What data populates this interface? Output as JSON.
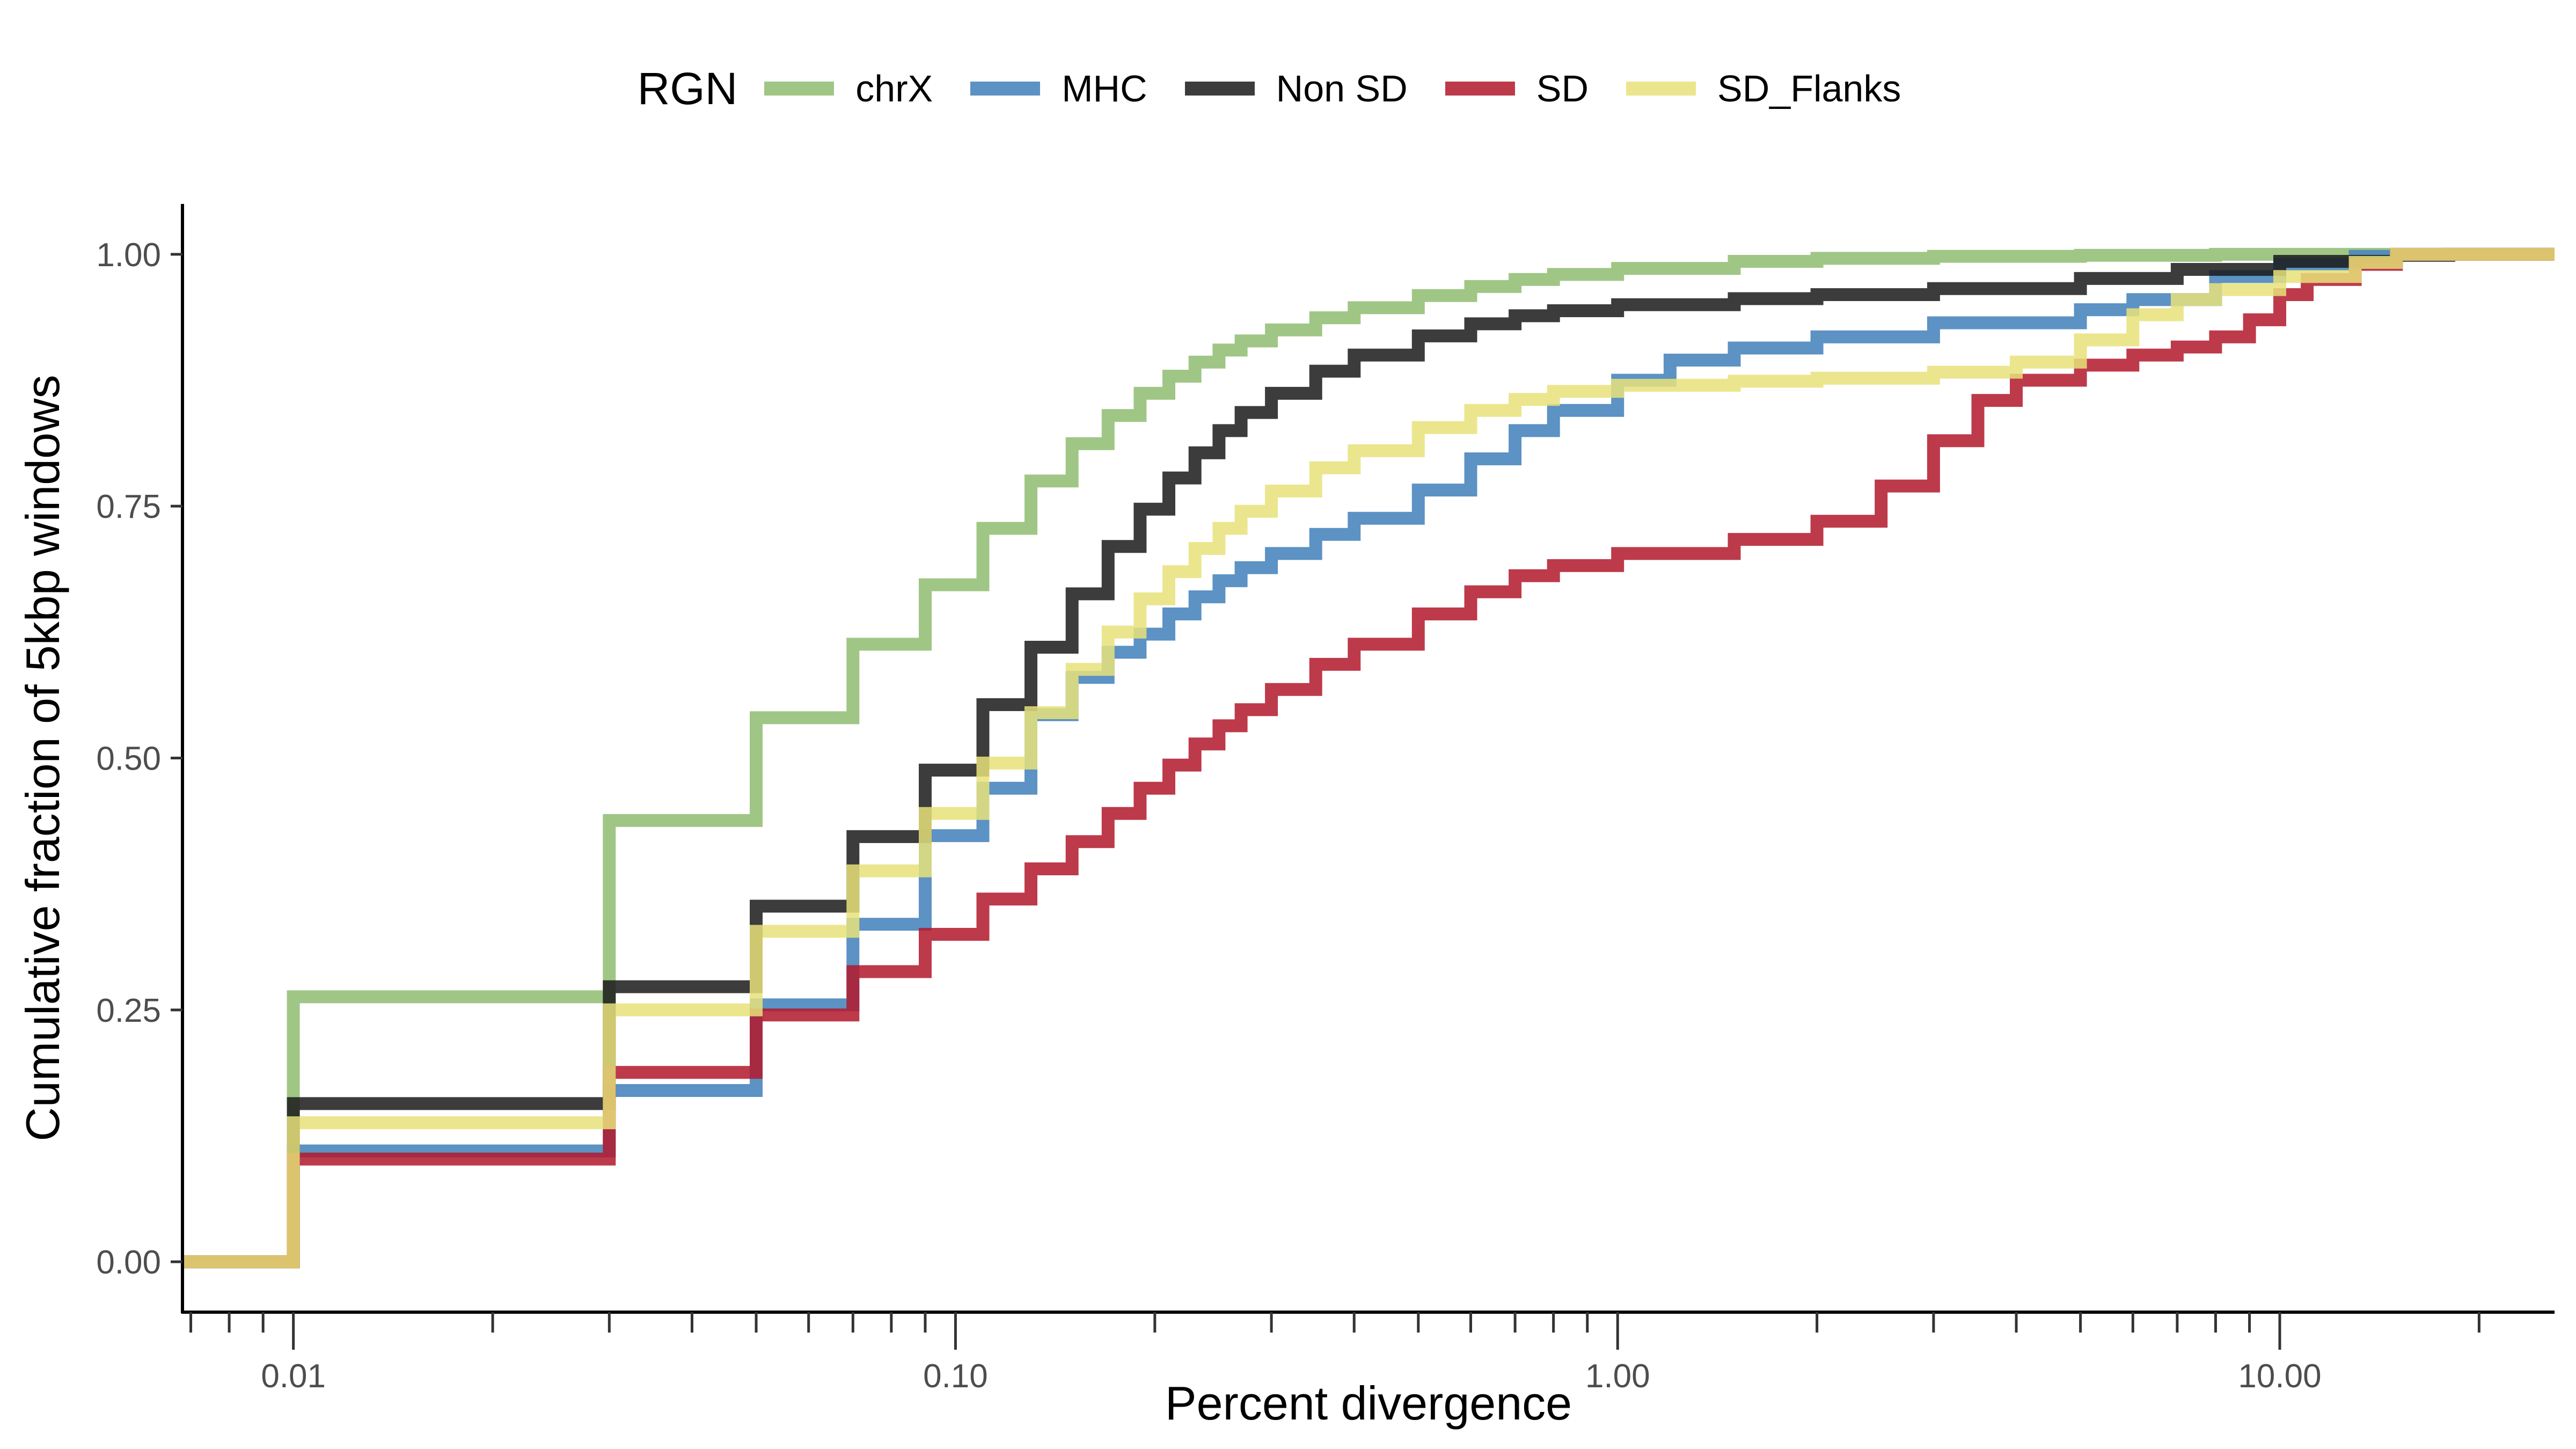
{
  "chart_data": {
    "type": "line",
    "title": "",
    "xlabel": "Percent divergence",
    "ylabel": "Cumulative fraction of 5kbp windows",
    "xscale": "log10",
    "xlim": [
      0.0068,
      26
    ],
    "ylim": [
      -0.05,
      1.05
    ],
    "x_ticks": [
      0.01,
      0.1,
      1,
      10
    ],
    "x_tick_labels": [
      "0.01",
      "0.10",
      "1.00",
      "10.00"
    ],
    "y_ticks": [
      0,
      0.25,
      0.5,
      0.75,
      1.0
    ],
    "y_tick_labels": [
      "0.00",
      "0.25",
      "0.50",
      "0.75",
      "1.00"
    ],
    "grid": false,
    "legend": {
      "title": "RGN",
      "position": "top"
    },
    "series": [
      {
        "name": "chrX",
        "color": "#8FBC71",
        "opacity": 0.85,
        "steps": [
          [
            0.0068,
            0
          ],
          [
            0.01,
            0.263
          ],
          [
            0.03,
            0.438
          ],
          [
            0.05,
            0.54
          ],
          [
            0.07,
            0.613
          ],
          [
            0.09,
            0.672
          ],
          [
            0.11,
            0.728
          ],
          [
            0.13,
            0.775
          ],
          [
            0.15,
            0.812
          ],
          [
            0.17,
            0.84
          ],
          [
            0.19,
            0.862
          ],
          [
            0.21,
            0.879
          ],
          [
            0.23,
            0.893
          ],
          [
            0.25,
            0.905
          ],
          [
            0.27,
            0.914
          ],
          [
            0.3,
            0.925
          ],
          [
            0.35,
            0.937
          ],
          [
            0.4,
            0.947
          ],
          [
            0.5,
            0.959
          ],
          [
            0.6,
            0.968
          ],
          [
            0.7,
            0.975
          ],
          [
            0.8,
            0.98
          ],
          [
            1.0,
            0.986
          ],
          [
            1.5,
            0.993
          ],
          [
            2.0,
            0.996
          ],
          [
            3.0,
            0.998
          ],
          [
            5.0,
            0.999
          ],
          [
            8.0,
            1.0
          ],
          [
            26,
            1.0
          ]
        ]
      },
      {
        "name": "MHC",
        "color": "#4A86BE",
        "opacity": 0.9,
        "steps": [
          [
            0.0068,
            0
          ],
          [
            0.01,
            0.11
          ],
          [
            0.03,
            0.17
          ],
          [
            0.05,
            0.255
          ],
          [
            0.07,
            0.335
          ],
          [
            0.09,
            0.423
          ],
          [
            0.11,
            0.47
          ],
          [
            0.13,
            0.543
          ],
          [
            0.15,
            0.58
          ],
          [
            0.17,
            0.605
          ],
          [
            0.19,
            0.623
          ],
          [
            0.21,
            0.643
          ],
          [
            0.23,
            0.66
          ],
          [
            0.25,
            0.676
          ],
          [
            0.27,
            0.689
          ],
          [
            0.3,
            0.703
          ],
          [
            0.35,
            0.722
          ],
          [
            0.4,
            0.738
          ],
          [
            0.5,
            0.766
          ],
          [
            0.6,
            0.797
          ],
          [
            0.7,
            0.825
          ],
          [
            0.8,
            0.845
          ],
          [
            1.0,
            0.875
          ],
          [
            1.2,
            0.895
          ],
          [
            1.5,
            0.907
          ],
          [
            2.0,
            0.918
          ],
          [
            3.0,
            0.932
          ],
          [
            5.0,
            0.945
          ],
          [
            6.0,
            0.955
          ],
          [
            8.0,
            0.978
          ],
          [
            10.0,
            0.99
          ],
          [
            13.0,
            0.998
          ],
          [
            15.0,
            1.0
          ],
          [
            26,
            1.0
          ]
        ]
      },
      {
        "name": "Non SD",
        "color": "#1a1a1a",
        "opacity": 0.85,
        "steps": [
          [
            0.0068,
            0
          ],
          [
            0.01,
            0.157
          ],
          [
            0.03,
            0.273
          ],
          [
            0.05,
            0.353
          ],
          [
            0.07,
            0.422
          ],
          [
            0.09,
            0.488
          ],
          [
            0.11,
            0.553
          ],
          [
            0.13,
            0.61
          ],
          [
            0.15,
            0.663
          ],
          [
            0.17,
            0.71
          ],
          [
            0.19,
            0.747
          ],
          [
            0.21,
            0.778
          ],
          [
            0.23,
            0.803
          ],
          [
            0.25,
            0.825
          ],
          [
            0.27,
            0.843
          ],
          [
            0.3,
            0.862
          ],
          [
            0.35,
            0.884
          ],
          [
            0.4,
            0.9
          ],
          [
            0.5,
            0.919
          ],
          [
            0.6,
            0.931
          ],
          [
            0.7,
            0.939
          ],
          [
            0.8,
            0.944
          ],
          [
            1.0,
            0.95
          ],
          [
            1.5,
            0.956
          ],
          [
            2.0,
            0.96
          ],
          [
            3.0,
            0.966
          ],
          [
            5.0,
            0.976
          ],
          [
            7.0,
            0.985
          ],
          [
            10.0,
            0.993
          ],
          [
            15.0,
            0.999
          ],
          [
            18.0,
            1.0
          ],
          [
            26,
            1.0
          ]
        ]
      },
      {
        "name": "SD",
        "color": "#B2182B",
        "opacity": 0.85,
        "steps": [
          [
            0.0068,
            0
          ],
          [
            0.01,
            0.102
          ],
          [
            0.03,
            0.188
          ],
          [
            0.05,
            0.245
          ],
          [
            0.07,
            0.288
          ],
          [
            0.09,
            0.325
          ],
          [
            0.11,
            0.36
          ],
          [
            0.13,
            0.39
          ],
          [
            0.15,
            0.417
          ],
          [
            0.17,
            0.445
          ],
          [
            0.19,
            0.47
          ],
          [
            0.21,
            0.493
          ],
          [
            0.23,
            0.514
          ],
          [
            0.25,
            0.532
          ],
          [
            0.27,
            0.548
          ],
          [
            0.3,
            0.568
          ],
          [
            0.35,
            0.593
          ],
          [
            0.4,
            0.613
          ],
          [
            0.5,
            0.643
          ],
          [
            0.6,
            0.665
          ],
          [
            0.7,
            0.681
          ],
          [
            0.8,
            0.691
          ],
          [
            1.0,
            0.703
          ],
          [
            1.5,
            0.717
          ],
          [
            2.0,
            0.735
          ],
          [
            2.5,
            0.77
          ],
          [
            3.0,
            0.815
          ],
          [
            3.5,
            0.855
          ],
          [
            4.0,
            0.875
          ],
          [
            5.0,
            0.89
          ],
          [
            6.0,
            0.9
          ],
          [
            7.0,
            0.908
          ],
          [
            8.0,
            0.918
          ],
          [
            9.0,
            0.935
          ],
          [
            10.0,
            0.96
          ],
          [
            11.0,
            0.975
          ],
          [
            13.0,
            0.99
          ],
          [
            15.0,
            1.0
          ],
          [
            26,
            1.0
          ]
        ]
      },
      {
        "name": "SD_Flanks",
        "color": "#E8E27A",
        "opacity": 0.85,
        "steps": [
          [
            0.0068,
            0
          ],
          [
            0.01,
            0.138
          ],
          [
            0.03,
            0.25
          ],
          [
            0.05,
            0.328
          ],
          [
            0.07,
            0.388
          ],
          [
            0.09,
            0.445
          ],
          [
            0.11,
            0.495
          ],
          [
            0.13,
            0.545
          ],
          [
            0.15,
            0.588
          ],
          [
            0.17,
            0.625
          ],
          [
            0.19,
            0.658
          ],
          [
            0.21,
            0.685
          ],
          [
            0.23,
            0.708
          ],
          [
            0.25,
            0.728
          ],
          [
            0.27,
            0.745
          ],
          [
            0.3,
            0.765
          ],
          [
            0.35,
            0.788
          ],
          [
            0.4,
            0.805
          ],
          [
            0.5,
            0.828
          ],
          [
            0.6,
            0.845
          ],
          [
            0.7,
            0.856
          ],
          [
            0.8,
            0.864
          ],
          [
            1.0,
            0.87
          ],
          [
            1.5,
            0.874
          ],
          [
            2.0,
            0.877
          ],
          [
            3.0,
            0.883
          ],
          [
            4.0,
            0.893
          ],
          [
            5.0,
            0.915
          ],
          [
            6.0,
            0.94
          ],
          [
            7.0,
            0.955
          ],
          [
            8.0,
            0.965
          ],
          [
            10.0,
            0.978
          ],
          [
            13.0,
            0.992
          ],
          [
            15.0,
            1.0
          ],
          [
            26,
            1.0
          ]
        ]
      }
    ]
  }
}
